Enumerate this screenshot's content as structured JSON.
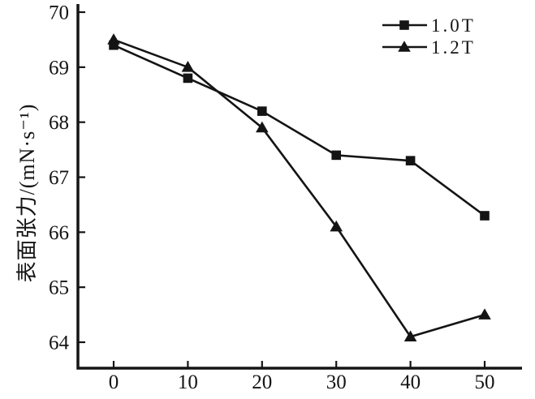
{
  "figure": {
    "background": "#ffffff",
    "ink_color": "#141414"
  },
  "chart_data": {
    "type": "line",
    "title": "",
    "xlabel": "",
    "ylabel": "表面张力/(mN·s⁻¹)",
    "x": [
      0,
      10,
      20,
      30,
      40,
      50
    ],
    "series": [
      {
        "name": "1.0T",
        "marker": "square",
        "color": "#141414",
        "values": [
          69.4,
          68.8,
          68.2,
          67.4,
          67.3,
          66.3
        ]
      },
      {
        "name": "1.2T",
        "marker": "triangle",
        "color": "#141414",
        "values": [
          69.5,
          69.0,
          67.9,
          66.1,
          64.1,
          64.5
        ]
      }
    ],
    "xticks": [
      "0",
      "10",
      "20",
      "30",
      "40",
      "50"
    ],
    "yticks": [
      "70",
      "69",
      "68",
      "67",
      "66",
      "65",
      "64"
    ],
    "xlim": [
      0,
      50
    ],
    "ylim": [
      64,
      70
    ],
    "grid": false,
    "legend_position": "top-right"
  }
}
